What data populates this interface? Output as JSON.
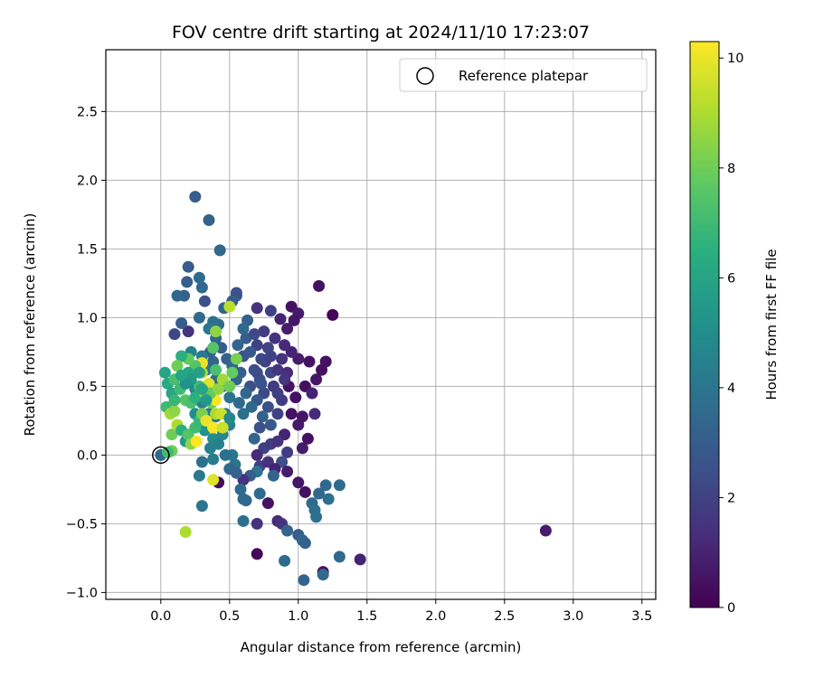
{
  "chart_data": {
    "type": "scatter",
    "title": "FOV centre drift starting at 2024/11/10 17:23:07",
    "xlabel": "Angular distance from reference (arcmin)",
    "ylabel": "Rotation from reference (arcmin)",
    "xlim": [
      -0.4,
      3.6
    ],
    "ylim": [
      -1.05,
      2.95
    ],
    "xticks": [
      0.0,
      0.5,
      1.0,
      1.5,
      2.0,
      2.5,
      3.0,
      3.5
    ],
    "xtick_labels": [
      "0.0",
      "0.5",
      "1.0",
      "1.5",
      "2.0",
      "2.5",
      "3.0",
      "3.5"
    ],
    "yticks": [
      -1.0,
      -0.5,
      0.0,
      0.5,
      1.0,
      1.5,
      2.0,
      2.5
    ],
    "ytick_labels": [
      "−1.0",
      "−0.5",
      "0.0",
      "0.5",
      "1.0",
      "1.5",
      "2.0",
      "2.5"
    ],
    "grid": true,
    "legend": {
      "placement": "top-right",
      "entries": [
        "Reference platepar"
      ]
    },
    "colorbar": {
      "label": "Hours from first FF file",
      "range": [
        0,
        10.3
      ],
      "ticks": [
        0,
        2,
        4,
        6,
        8,
        10
      ],
      "tick_labels": [
        "0",
        "2",
        "4",
        "6",
        "8",
        "10"
      ],
      "colormap": "viridis"
    },
    "reference_point": {
      "x": 0.0,
      "y": 0.0
    },
    "points": [
      [
        0.0,
        0.0,
        3.5
      ],
      [
        0.55,
        1.16,
        3.2
      ],
      [
        1.25,
        1.02,
        0.1
      ],
      [
        1.15,
        1.23,
        0.5
      ],
      [
        1.2,
        0.68,
        0.5
      ],
      [
        2.8,
        -0.55,
        0.8
      ],
      [
        0.25,
        1.88,
        3.0
      ],
      [
        0.35,
        1.71,
        3.2
      ],
      [
        0.43,
        1.49,
        3.4
      ],
      [
        0.2,
        1.37,
        3.0
      ],
      [
        0.28,
        1.29,
        3.6
      ],
      [
        0.3,
        1.22,
        3.5
      ],
      [
        0.19,
        1.26,
        3.0
      ],
      [
        0.17,
        1.16,
        3.2
      ],
      [
        0.32,
        1.12,
        2.5
      ],
      [
        0.55,
        1.18,
        2.5
      ],
      [
        0.52,
        1.12,
        3.0
      ],
      [
        0.12,
        1.16,
        3.4
      ],
      [
        0.46,
        1.07,
        3.3
      ],
      [
        0.5,
        1.08,
        9.2
      ],
      [
        0.1,
        0.88,
        2.2
      ],
      [
        0.2,
        0.9,
        1.5
      ],
      [
        0.28,
        1.0,
        3.5
      ],
      [
        0.15,
        0.96,
        3.0
      ],
      [
        0.95,
        1.08,
        0.5
      ],
      [
        1.0,
        1.03,
        0.8
      ],
      [
        0.97,
        0.98,
        0.6
      ],
      [
        0.7,
        1.07,
        1.5
      ],
      [
        0.8,
        1.05,
        2.0
      ],
      [
        0.63,
        0.98,
        3.2
      ],
      [
        0.87,
        0.99,
        1.0
      ],
      [
        0.92,
        0.92,
        0.8
      ],
      [
        0.93,
        0.5,
        0.5
      ],
      [
        0.98,
        0.42,
        0.5
      ],
      [
        1.05,
        0.5,
        0.4
      ],
      [
        1.1,
        0.45,
        1.0
      ],
      [
        1.08,
        0.68,
        0.5
      ],
      [
        1.0,
        0.7,
        0.8
      ],
      [
        1.13,
        0.55,
        0.6
      ],
      [
        1.17,
        0.62,
        0.4
      ],
      [
        0.95,
        0.3,
        0.5
      ],
      [
        1.0,
        0.22,
        0.7
      ],
      [
        1.03,
        0.28,
        0.6
      ],
      [
        0.9,
        0.15,
        1.0
      ],
      [
        1.07,
        0.12,
        0.5
      ],
      [
        1.03,
        0.05,
        0.8
      ],
      [
        1.12,
        0.3,
        1.2
      ],
      [
        0.7,
        0.8,
        2.0
      ],
      [
        0.76,
        0.68,
        2.0
      ],
      [
        0.8,
        0.6,
        2.3
      ],
      [
        0.72,
        0.55,
        2.4
      ],
      [
        0.68,
        0.62,
        2.5
      ],
      [
        0.65,
        0.5,
        2.5
      ],
      [
        0.75,
        0.45,
        2.3
      ],
      [
        0.82,
        0.5,
        1.8
      ],
      [
        0.85,
        0.62,
        1.6
      ],
      [
        0.88,
        0.7,
        1.5
      ],
      [
        0.6,
        0.72,
        2.6
      ],
      [
        0.62,
        0.85,
        3.0
      ],
      [
        0.58,
        0.6,
        3.0
      ],
      [
        0.55,
        0.55,
        3.3
      ],
      [
        0.7,
        0.4,
        2.8
      ],
      [
        0.78,
        0.35,
        2.5
      ],
      [
        0.85,
        0.3,
        2.0
      ],
      [
        0.88,
        0.4,
        1.8
      ],
      [
        0.92,
        0.6,
        1.3
      ],
      [
        0.95,
        0.75,
        1.0
      ],
      [
        0.9,
        0.8,
        1.2
      ],
      [
        0.83,
        0.85,
        1.5
      ],
      [
        0.75,
        0.9,
        1.8
      ],
      [
        0.68,
        0.88,
        2.3
      ],
      [
        0.65,
        0.75,
        2.8
      ],
      [
        0.73,
        0.7,
        2.2
      ],
      [
        0.8,
        0.72,
        2.0
      ],
      [
        0.78,
        0.78,
        2.1
      ],
      [
        0.7,
        0.6,
        2.4
      ],
      [
        0.73,
        0.52,
        2.6
      ],
      [
        0.85,
        0.45,
        1.9
      ],
      [
        0.9,
        0.55,
        1.6
      ],
      [
        0.62,
        0.45,
        3.4
      ],
      [
        0.66,
        0.35,
        3.5
      ],
      [
        0.74,
        0.28,
        3.2
      ],
      [
        0.8,
        0.22,
        2.8
      ],
      [
        0.72,
        0.2,
        2.5
      ],
      [
        0.68,
        0.12,
        3.3
      ],
      [
        0.75,
        0.05,
        2.0
      ],
      [
        0.8,
        0.08,
        1.8
      ],
      [
        0.85,
        0.1,
        1.5
      ],
      [
        0.92,
        0.02,
        1.8
      ],
      [
        0.88,
        -0.05,
        2.5
      ],
      [
        0.57,
        0.38,
        3.6
      ],
      [
        0.6,
        0.3,
        3.8
      ],
      [
        0.5,
        0.42,
        3.9
      ],
      [
        0.45,
        0.5,
        3.7
      ],
      [
        0.4,
        0.55,
        3.6
      ],
      [
        0.38,
        0.68,
        3.3
      ],
      [
        0.36,
        0.75,
        3.1
      ],
      [
        0.4,
        0.85,
        3.4
      ],
      [
        0.42,
        0.95,
        3.6
      ],
      [
        0.38,
        0.97,
        3.8
      ],
      [
        0.35,
        0.92,
        4.0
      ],
      [
        0.44,
        0.78,
        3.0
      ],
      [
        0.48,
        0.7,
        3.2
      ],
      [
        0.52,
        0.65,
        3.5
      ],
      [
        0.56,
        0.8,
        3.3
      ],
      [
        0.6,
        0.92,
        3.5
      ],
      [
        0.22,
        0.75,
        4.5
      ],
      [
        0.3,
        0.72,
        4.2
      ],
      [
        0.33,
        0.62,
        4.0
      ],
      [
        0.37,
        0.45,
        3.9
      ],
      [
        0.25,
        0.48,
        4.8
      ],
      [
        0.3,
        0.38,
        4.5
      ],
      [
        0.35,
        0.3,
        4.2
      ],
      [
        0.4,
        0.28,
        4.0
      ],
      [
        0.47,
        0.3,
        4.3
      ],
      [
        0.5,
        0.22,
        4.5
      ],
      [
        0.45,
        0.15,
        4.8
      ],
      [
        0.38,
        0.12,
        5.0
      ],
      [
        0.32,
        0.18,
        5.2
      ],
      [
        0.28,
        0.25,
        4.6
      ],
      [
        0.25,
        0.3,
        5.0
      ],
      [
        0.36,
        0.05,
        4.4
      ],
      [
        0.38,
        -0.03,
        4.3
      ],
      [
        0.3,
        -0.05,
        3.8
      ],
      [
        0.42,
        0.08,
        4.5
      ],
      [
        0.52,
        0.0,
        4.0
      ],
      [
        0.54,
        -0.07,
        3.9
      ],
      [
        0.5,
        -0.1,
        3.5
      ],
      [
        0.7,
        0.0,
        1.2
      ],
      [
        0.72,
        -0.08,
        2.0
      ],
      [
        0.78,
        -0.05,
        1.5
      ],
      [
        0.83,
        -0.1,
        1.0
      ],
      [
        0.92,
        -0.12,
        0.8
      ],
      [
        0.82,
        -0.15,
        3.3
      ],
      [
        0.7,
        -0.12,
        4.0
      ],
      [
        0.65,
        -0.15,
        3.0
      ],
      [
        0.6,
        -0.18,
        1.5
      ],
      [
        0.55,
        -0.13,
        3.2
      ],
      [
        0.58,
        -0.25,
        3.5
      ],
      [
        0.6,
        -0.32,
        3.5
      ],
      [
        0.62,
        -0.33,
        3.5
      ],
      [
        0.6,
        -0.48,
        3.8
      ],
      [
        0.72,
        -0.28,
        3.6
      ],
      [
        0.78,
        -0.35,
        0.5
      ],
      [
        0.85,
        -0.48,
        1.2
      ],
      [
        0.88,
        -0.5,
        1.5
      ],
      [
        0.92,
        -0.55,
        3.3
      ],
      [
        1.0,
        -0.58,
        3.0
      ],
      [
        1.03,
        -0.62,
        3.5
      ],
      [
        1.05,
        -0.64,
        3.2
      ],
      [
        1.05,
        -0.27,
        0.5
      ],
      [
        1.1,
        -0.35,
        3.6
      ],
      [
        1.12,
        -0.4,
        3.7
      ],
      [
        1.13,
        -0.45,
        3.8
      ],
      [
        1.15,
        -0.28,
        3.5
      ],
      [
        1.2,
        -0.22,
        3.5
      ],
      [
        1.22,
        -0.32,
        3.8
      ],
      [
        1.3,
        -0.22,
        3.6
      ],
      [
        1.0,
        -0.2,
        0.6
      ],
      [
        1.18,
        -0.85,
        0.5
      ],
      [
        1.18,
        -0.87,
        3.5
      ],
      [
        1.3,
        -0.74,
        3.6
      ],
      [
        1.45,
        -0.76,
        1.0
      ],
      [
        1.04,
        -0.91,
        3.3
      ],
      [
        0.9,
        -0.77,
        3.6
      ],
      [
        0.7,
        -0.72,
        0.2
      ],
      [
        0.7,
        -0.5,
        1.5
      ],
      [
        0.42,
        -0.2,
        0.3
      ],
      [
        0.3,
        -0.37,
        4.0
      ],
      [
        0.28,
        -0.15,
        4.2
      ],
      [
        0.38,
        -0.18,
        9.8
      ],
      [
        0.03,
        0.6,
        6.0
      ],
      [
        0.05,
        0.52,
        6.2
      ],
      [
        0.04,
        0.35,
        7.0
      ],
      [
        0.07,
        0.3,
        8.8
      ],
      [
        0.1,
        0.32,
        8.5
      ],
      [
        0.08,
        0.15,
        8.0
      ],
      [
        0.12,
        0.22,
        9.0
      ],
      [
        0.15,
        0.18,
        6.5
      ],
      [
        0.18,
        0.1,
        5.5
      ],
      [
        0.2,
        0.15,
        7.5
      ],
      [
        0.22,
        0.08,
        8.5
      ],
      [
        0.26,
        0.1,
        10.3
      ],
      [
        0.25,
        0.2,
        7.0
      ],
      [
        0.28,
        0.25,
        6.8
      ],
      [
        0.3,
        0.3,
        8.2
      ],
      [
        0.33,
        0.25,
        10.0
      ],
      [
        0.38,
        0.2,
        10.2
      ],
      [
        0.4,
        0.3,
        9.0
      ],
      [
        0.37,
        0.38,
        8.0
      ],
      [
        0.4,
        0.4,
        10.2
      ],
      [
        0.35,
        0.52,
        9.8
      ],
      [
        0.3,
        0.6,
        9.0
      ],
      [
        0.3,
        0.67,
        10.0
      ],
      [
        0.25,
        0.65,
        7.5
      ],
      [
        0.2,
        0.7,
        7.8
      ],
      [
        0.15,
        0.72,
        6.5
      ],
      [
        0.12,
        0.65,
        8.0
      ],
      [
        0.1,
        0.55,
        7.2
      ],
      [
        0.08,
        0.45,
        6.0
      ],
      [
        0.1,
        0.4,
        6.8
      ],
      [
        0.14,
        0.48,
        7.0
      ],
      [
        0.18,
        0.4,
        7.5
      ],
      [
        0.22,
        0.38,
        7.2
      ],
      [
        0.25,
        0.42,
        6.5
      ],
      [
        0.28,
        0.5,
        7.0
      ],
      [
        0.32,
        0.45,
        8.5
      ],
      [
        0.36,
        0.45,
        7.8
      ],
      [
        0.44,
        0.3,
        9.5
      ],
      [
        0.42,
        0.48,
        8.5
      ],
      [
        0.45,
        0.55,
        8.8
      ],
      [
        0.5,
        0.5,
        8.0
      ],
      [
        0.52,
        0.6,
        7.8
      ],
      [
        0.55,
        0.7,
        8.2
      ],
      [
        0.4,
        0.62,
        7.2
      ],
      [
        0.38,
        0.78,
        7.5
      ],
      [
        0.4,
        0.9,
        8.5
      ],
      [
        0.08,
        0.03,
        8.0
      ],
      [
        0.05,
        0.02,
        7.0
      ],
      [
        0.18,
        -0.56,
        9.0
      ],
      [
        0.2,
        0.6,
        6.0
      ],
      [
        0.22,
        0.55,
        5.5
      ],
      [
        0.18,
        0.52,
        5.2
      ],
      [
        0.15,
        0.58,
        6.0
      ],
      [
        0.28,
        0.6,
        5.8
      ],
      [
        0.3,
        0.48,
        6.0
      ],
      [
        0.33,
        0.4,
        5.5
      ],
      [
        0.45,
        0.2,
        9.5
      ],
      [
        0.47,
        0.0,
        3.8
      ],
      [
        0.5,
        0.27,
        4.8
      ]
    ]
  }
}
